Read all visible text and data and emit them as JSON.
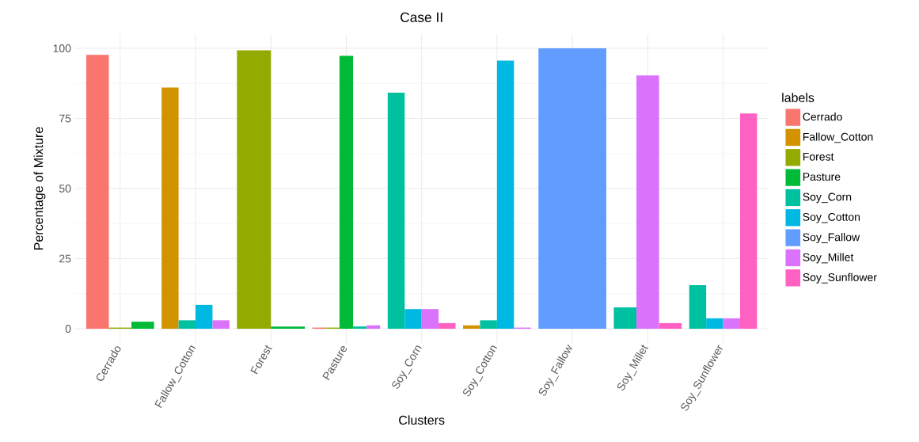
{
  "chart_data": {
    "type": "bar",
    "title": "Case II",
    "xlabel": "Clusters",
    "ylabel": "Percentage of Mixture",
    "legend_title": "labels",
    "categories": [
      "Cerrado",
      "Fallow_Cotton",
      "Forest",
      "Pasture",
      "Soy_Corn",
      "Soy_Cotton",
      "Soy_Fallow",
      "Soy_Millet",
      "Soy_Sunflower"
    ],
    "series": [
      {
        "name": "Cerrado",
        "color": "#f8766d",
        "values": [
          97.7,
          null,
          null,
          0.4,
          null,
          null,
          null,
          null,
          null
        ]
      },
      {
        "name": "Fallow_Cotton",
        "color": "#d39200",
        "values": [
          null,
          86,
          null,
          null,
          null,
          1.2,
          null,
          null,
          null
        ]
      },
      {
        "name": "Forest",
        "color": "#93aa00",
        "values": [
          0.4,
          null,
          99.3,
          0.4,
          null,
          null,
          null,
          null,
          null
        ]
      },
      {
        "name": "Pasture",
        "color": "#00ba38",
        "values": [
          2.5,
          null,
          0.8,
          97.3,
          null,
          null,
          null,
          null,
          null
        ]
      },
      {
        "name": "Soy_Corn",
        "color": "#00c19f",
        "values": [
          null,
          3,
          null,
          0.8,
          84.2,
          3,
          null,
          7.6,
          15.5
        ]
      },
      {
        "name": "Soy_Cotton",
        "color": "#00b9e3",
        "values": [
          null,
          8.5,
          null,
          null,
          7,
          95.6,
          null,
          null,
          3.7
        ]
      },
      {
        "name": "Soy_Fallow",
        "color": "#619cff",
        "values": [
          null,
          null,
          null,
          null,
          null,
          null,
          100,
          null,
          null
        ]
      },
      {
        "name": "Soy_Millet",
        "color": "#db72fb",
        "values": [
          null,
          3,
          null,
          1.2,
          7,
          0.4,
          null,
          90.3,
          3.7
        ]
      },
      {
        "name": "Soy_Sunflower",
        "color": "#ff61c3",
        "values": [
          null,
          null,
          null,
          null,
          2,
          null,
          null,
          2,
          76.8
        ]
      }
    ],
    "ylim": [
      -5,
      105
    ],
    "yticks": [
      0,
      25,
      50,
      75,
      100
    ],
    "grid": true,
    "legend": "right"
  }
}
